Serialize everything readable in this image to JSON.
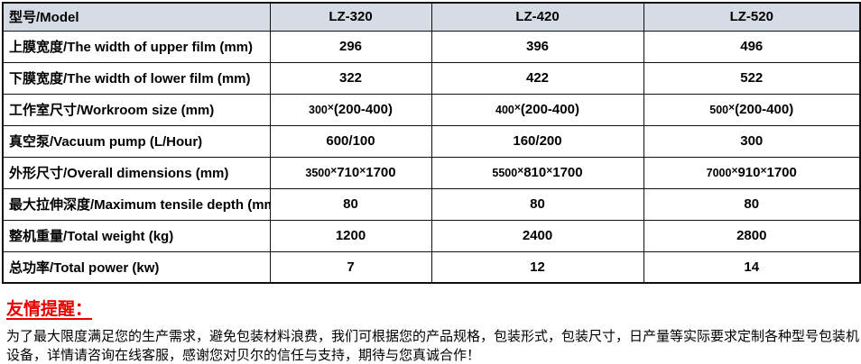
{
  "colors": {
    "header_fill": "#d6dce4",
    "border": "#111111",
    "notice_red": "#e60000"
  },
  "table": {
    "header": {
      "label": "型号/Model",
      "models": [
        "LZ-320",
        "LZ-420",
        "LZ-520"
      ]
    },
    "rows": [
      {
        "label": "上膜宽度/The width of upper film (mm)",
        "values": [
          "296",
          "396",
          "496"
        ]
      },
      {
        "label": "下膜宽度/The width of lower film (mm)",
        "values": [
          "322",
          "422",
          "522"
        ]
      },
      {
        "label": "工作室尺寸/Workroom size (mm)",
        "values": [
          "300×(200-400)",
          "400×(200-400)",
          "500×(200-400)"
        ]
      },
      {
        "label": "真空泵/Vacuum pump (L/Hour)",
        "values": [
          "600/100",
          "160/200",
          "300"
        ]
      },
      {
        "label": "外形尺寸/Overall dimensions (mm)",
        "values": [
          "3500×710×1700",
          "5500×810×1700",
          "7000×910×1700"
        ]
      },
      {
        "label": "最大拉伸深度/Maximum tensile depth (mm)",
        "values": [
          "80",
          "80",
          "80"
        ]
      },
      {
        "label": "整机重量/Total weight (kg)",
        "values": [
          "1200",
          "2400",
          "2800"
        ]
      },
      {
        "label": "总功率/Total power (kw)",
        "values": [
          "7",
          "12",
          "14"
        ]
      }
    ]
  },
  "notice": {
    "title": "友情提醒：",
    "body": "为了最大限度满足您的生产需求，避免包装材料浪费，我们可根据您的产品规格，包装形式，包装尺寸，日产量等实际要求定制各种型号包装机设备，详情请咨询在线客服，感谢您对贝尔的信任与支持，期待与您真诚合作！"
  }
}
